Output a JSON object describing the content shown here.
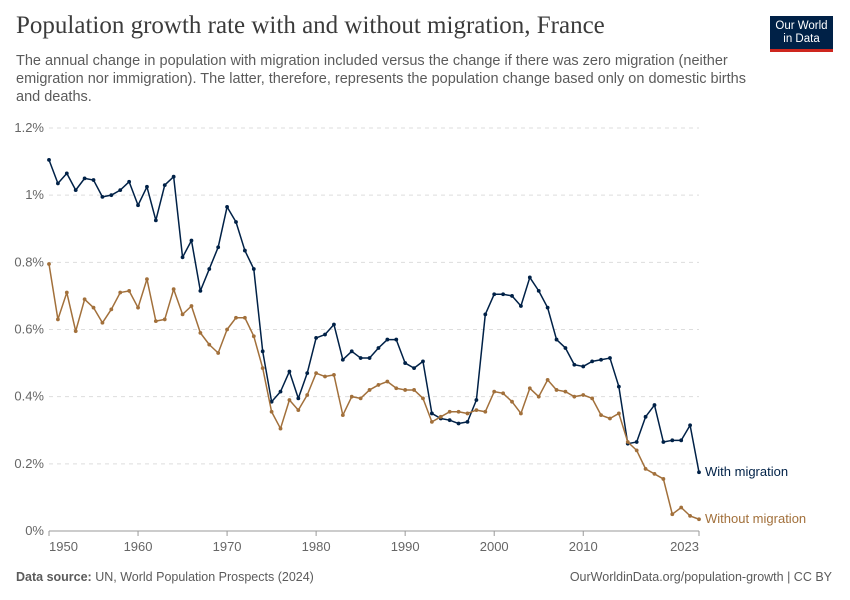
{
  "header": {
    "title": "Population growth rate with and without migration, France",
    "subtitle": "The annual change in population with migration included versus the change if there was zero migration (neither emigration nor immigration). The latter, therefore, represents the population change based only on domestic births and deaths."
  },
  "logo": {
    "line1": "Our World",
    "line2": "in Data",
    "bg_color": "#002147",
    "accent_color": "#ce261e"
  },
  "footer": {
    "source_label": "Data source:",
    "source_text": "UN, World Population Prospects (2024)",
    "right_text": "OurWorldinData.org/population-growth | CC BY"
  },
  "chart_data": {
    "type": "line",
    "xlim": [
      1950,
      2023
    ],
    "ylim": [
      0,
      1.2
    ],
    "y_ticks": [
      0,
      0.2,
      0.4,
      0.6,
      0.8,
      1,
      1.2
    ],
    "y_tick_labels": [
      "0%",
      "0.2%",
      "0.4%",
      "0.6%",
      "0.8%",
      "1%",
      "1.2%"
    ],
    "x_ticks": [
      1950,
      1960,
      1970,
      1980,
      1990,
      2000,
      2010,
      2023
    ],
    "x_tick_labels": [
      "1950",
      "1960",
      "1970",
      "1980",
      "1990",
      "2000",
      "2010",
      "2023"
    ],
    "grid": "horizontal-dashed",
    "legend": "end-of-line labels",
    "x": [
      1950,
      1951,
      1952,
      1953,
      1954,
      1955,
      1956,
      1957,
      1958,
      1959,
      1960,
      1961,
      1962,
      1963,
      1964,
      1965,
      1966,
      1967,
      1968,
      1969,
      1970,
      1971,
      1972,
      1973,
      1974,
      1975,
      1976,
      1977,
      1978,
      1979,
      1980,
      1981,
      1982,
      1983,
      1984,
      1985,
      1986,
      1987,
      1988,
      1989,
      1990,
      1991,
      1992,
      1993,
      1994,
      1995,
      1996,
      1997,
      1998,
      1999,
      2000,
      2001,
      2002,
      2003,
      2004,
      2005,
      2006,
      2007,
      2008,
      2009,
      2010,
      2011,
      2012,
      2013,
      2014,
      2015,
      2016,
      2017,
      2018,
      2019,
      2020,
      2021,
      2022,
      2023
    ],
    "series": [
      {
        "name": "With migration",
        "color": "#002147",
        "values": [
          1.105,
          1.035,
          1.065,
          1.015,
          1.05,
          1.045,
          0.995,
          1.0,
          1.015,
          1.04,
          0.97,
          1.025,
          0.925,
          1.03,
          1.055,
          0.815,
          0.865,
          0.715,
          0.78,
          0.845,
          0.965,
          0.92,
          0.835,
          0.78,
          0.535,
          0.385,
          0.415,
          0.475,
          0.395,
          0.47,
          0.575,
          0.585,
          0.615,
          0.51,
          0.535,
          0.515,
          0.515,
          0.545,
          0.57,
          0.57,
          0.5,
          0.485,
          0.505,
          0.35,
          0.335,
          0.33,
          0.32,
          0.325,
          0.39,
          0.645,
          0.705,
          0.705,
          0.7,
          0.67,
          0.755,
          0.715,
          0.665,
          0.57,
          0.545,
          0.495,
          0.49,
          0.505,
          0.51,
          0.515,
          0.43,
          0.26,
          0.265,
          0.34,
          0.375,
          0.265,
          0.27,
          0.27,
          0.315,
          0.175
        ]
      },
      {
        "name": "Without migration",
        "color": "#a2703b",
        "values": [
          0.795,
          0.63,
          0.71,
          0.595,
          0.69,
          0.665,
          0.62,
          0.66,
          0.71,
          0.715,
          0.665,
          0.75,
          0.625,
          0.63,
          0.72,
          0.645,
          0.67,
          0.59,
          0.555,
          0.53,
          0.6,
          0.635,
          0.635,
          0.58,
          0.485,
          0.355,
          0.305,
          0.39,
          0.36,
          0.405,
          0.47,
          0.46,
          0.465,
          0.345,
          0.4,
          0.395,
          0.42,
          0.435,
          0.445,
          0.425,
          0.42,
          0.42,
          0.395,
          0.325,
          0.34,
          0.355,
          0.355,
          0.35,
          0.36,
          0.355,
          0.415,
          0.41,
          0.385,
          0.35,
          0.425,
          0.4,
          0.45,
          0.42,
          0.415,
          0.4,
          0.405,
          0.395,
          0.345,
          0.335,
          0.35,
          0.265,
          0.24,
          0.185,
          0.17,
          0.155,
          0.05,
          0.07,
          0.045,
          0.035
        ]
      }
    ]
  }
}
